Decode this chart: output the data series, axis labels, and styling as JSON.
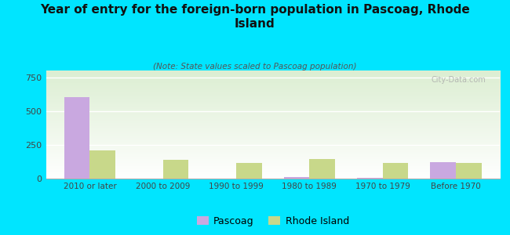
{
  "title": "Year of entry for the foreign-born population in Pascoag, Rhode\nIsland",
  "subtitle": "(Note: State values scaled to Pascoag population)",
  "categories": [
    "2010 or later",
    "2000 to 2009",
    "1990 to 1999",
    "1980 to 1989",
    "1970 to 1979",
    "Before 1970"
  ],
  "pascoag_values": [
    600,
    0,
    0,
    10,
    8,
    120
  ],
  "rhode_island_values": [
    210,
    140,
    115,
    145,
    115,
    115
  ],
  "pascoag_color": "#c9a8e0",
  "rhode_island_color": "#c8d88a",
  "background_color": "#00e5ff",
  "ylim": [
    0,
    800
  ],
  "yticks": [
    0,
    250,
    500,
    750
  ],
  "bar_width": 0.35,
  "watermark": "City-Data.com"
}
